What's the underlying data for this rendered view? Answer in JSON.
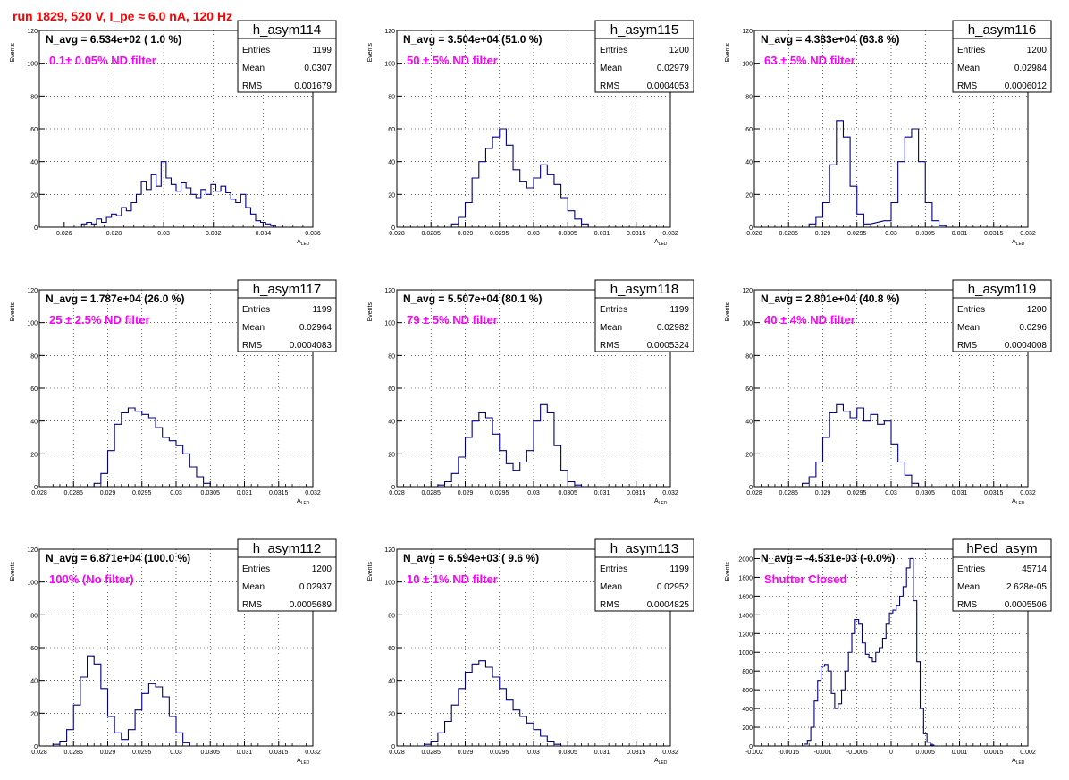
{
  "page_title": "run 1829,   520 V, I_pe ≈ 6.0 nA, 120 Hz",
  "colors": {
    "title": "#ff0000",
    "annotation": "#ff00ff",
    "histogram": "#000080",
    "grid": "#000000"
  },
  "stat_labels": {
    "entries": "Entries",
    "mean": "Mean",
    "rms": "RMS"
  },
  "axis_label_main": "A",
  "axis_label_sub": "LED",
  "axis_label_y": "Events",
  "chart_data": [
    {
      "type": "bar",
      "name": "h_asym114",
      "nline": "N_avg = 6.534e+02 ( 1.0 %)",
      "annotation": "0.1± 0.05% ND filter",
      "entries": "1199",
      "mean": "0.0307",
      "rms": "0.001679",
      "xlim": [
        0.025,
        0.036
      ],
      "ylim": [
        0,
        120
      ],
      "xticks": [
        "0.026",
        "0.028",
        "0.03",
        "0.032",
        "0.034",
        "0.036"
      ],
      "xtick_values": [
        0.026,
        0.028,
        0.03,
        0.032,
        0.034,
        0.036
      ],
      "yticks": [
        "0",
        "20",
        "40",
        "60",
        "80",
        "100",
        "120"
      ],
      "ytick_values": [
        0,
        20,
        40,
        60,
        80,
        100,
        120
      ],
      "bins": [
        [
          0.0268,
          2
        ],
        [
          0.027,
          3
        ],
        [
          0.0272,
          2
        ],
        [
          0.0274,
          5
        ],
        [
          0.0276,
          3
        ],
        [
          0.0278,
          6
        ],
        [
          0.028,
          8
        ],
        [
          0.0282,
          7
        ],
        [
          0.0284,
          12
        ],
        [
          0.0286,
          10
        ],
        [
          0.0288,
          15
        ],
        [
          0.029,
          20
        ],
        [
          0.0292,
          28
        ],
        [
          0.0294,
          23
        ],
        [
          0.0296,
          32
        ],
        [
          0.0298,
          25
        ],
        [
          0.03,
          40
        ],
        [
          0.0302,
          30
        ],
        [
          0.0304,
          26
        ],
        [
          0.0306,
          22
        ],
        [
          0.0308,
          27
        ],
        [
          0.031,
          24
        ],
        [
          0.0312,
          20
        ],
        [
          0.0314,
          18
        ],
        [
          0.0316,
          23
        ],
        [
          0.0318,
          20
        ],
        [
          0.032,
          26
        ],
        [
          0.0322,
          22
        ],
        [
          0.0324,
          25
        ],
        [
          0.0326,
          21
        ],
        [
          0.0328,
          17
        ],
        [
          0.033,
          15
        ],
        [
          0.0332,
          20
        ],
        [
          0.0334,
          12
        ],
        [
          0.0336,
          8
        ],
        [
          0.0338,
          4
        ],
        [
          0.034,
          3
        ],
        [
          0.0342,
          2
        ],
        [
          0.0344,
          1
        ]
      ]
    },
    {
      "type": "bar",
      "name": "h_asym115",
      "nline": "N_avg = 3.504e+04 (51.0 %)",
      "annotation": "50 ± 5% ND filter",
      "entries": "1200",
      "mean": "0.02979",
      "rms": "0.0004053",
      "xlim": [
        0.028,
        0.032
      ],
      "ylim": [
        0,
        120
      ],
      "xticks": [
        "0.028",
        "0.0285",
        "0.029",
        "0.0295",
        "0.03",
        "0.0305",
        "0.031",
        "0.0315",
        "0.032"
      ],
      "xtick_values": [
        0.028,
        0.0285,
        0.029,
        0.0295,
        0.03,
        0.0305,
        0.031,
        0.0315,
        0.032
      ],
      "yticks": [
        "0",
        "20",
        "40",
        "60",
        "80",
        "100",
        "120"
      ],
      "ytick_values": [
        0,
        20,
        40,
        60,
        80,
        100,
        120
      ],
      "bins": [
        [
          0.02885,
          2
        ],
        [
          0.02895,
          6
        ],
        [
          0.02905,
          15
        ],
        [
          0.02915,
          30
        ],
        [
          0.02925,
          40
        ],
        [
          0.02935,
          48
        ],
        [
          0.02945,
          55
        ],
        [
          0.02955,
          60
        ],
        [
          0.02965,
          50
        ],
        [
          0.02975,
          35
        ],
        [
          0.02985,
          28
        ],
        [
          0.02995,
          24
        ],
        [
          0.03005,
          30
        ],
        [
          0.03015,
          38
        ],
        [
          0.03025,
          32
        ],
        [
          0.03035,
          26
        ],
        [
          0.03045,
          18
        ],
        [
          0.03055,
          10
        ],
        [
          0.03065,
          5
        ],
        [
          0.03075,
          2
        ]
      ]
    },
    {
      "type": "bar",
      "name": "h_asym116",
      "nline": "N_avg = 4.383e+04 (63.8 %)",
      "annotation": "63 ± 5% ND filter",
      "entries": "1200",
      "mean": "0.02984",
      "rms": "0.0006012",
      "xlim": [
        0.028,
        0.032
      ],
      "ylim": [
        0,
        120
      ],
      "xticks": [
        "0.028",
        "0.0285",
        "0.029",
        "0.0295",
        "0.03",
        "0.0305",
        "0.031",
        "0.0315",
        "0.032"
      ],
      "xtick_values": [
        0.028,
        0.0285,
        0.029,
        0.0295,
        0.03,
        0.0305,
        0.031,
        0.0315,
        0.032
      ],
      "yticks": [
        "0",
        "20",
        "40",
        "60",
        "80",
        "100",
        "120"
      ],
      "ytick_values": [
        0,
        20,
        40,
        60,
        80,
        100,
        120
      ],
      "bins": [
        [
          0.02885,
          2
        ],
        [
          0.02895,
          6
        ],
        [
          0.02905,
          15
        ],
        [
          0.02915,
          38
        ],
        [
          0.02925,
          65
        ],
        [
          0.02935,
          55
        ],
        [
          0.02945,
          25
        ],
        [
          0.02955,
          8
        ],
        [
          0.02965,
          2
        ],
        [
          0.02995,
          4
        ],
        [
          0.03005,
          15
        ],
        [
          0.03015,
          40
        ],
        [
          0.03025,
          55
        ],
        [
          0.03035,
          60
        ],
        [
          0.03045,
          40
        ],
        [
          0.03055,
          15
        ],
        [
          0.03065,
          4
        ],
        [
          0.03075,
          1
        ]
      ]
    },
    {
      "type": "bar",
      "name": "h_asym117",
      "nline": "N_avg = 1.787e+04 (26.0 %)",
      "annotation": "25 ± 2.5% ND filter",
      "entries": "1199",
      "mean": "0.02964",
      "rms": "0.0004083",
      "xlim": [
        0.028,
        0.032
      ],
      "ylim": [
        0,
        120
      ],
      "xticks": [
        "0.028",
        "0.0285",
        "0.029",
        "0.0295",
        "0.03",
        "0.0305",
        "0.031",
        "0.0315",
        "0.032"
      ],
      "xtick_values": [
        0.028,
        0.0285,
        0.029,
        0.0295,
        0.03,
        0.0305,
        0.031,
        0.0315,
        0.032
      ],
      "yticks": [
        "0",
        "20",
        "40",
        "60",
        "80",
        "100",
        "120"
      ],
      "ytick_values": [
        0,
        20,
        40,
        60,
        80,
        100,
        120
      ],
      "bins": [
        [
          0.02885,
          2
        ],
        [
          0.02895,
          8
        ],
        [
          0.02905,
          22
        ],
        [
          0.02915,
          38
        ],
        [
          0.02925,
          45
        ],
        [
          0.02935,
          48
        ],
        [
          0.02945,
          46
        ],
        [
          0.02955,
          44
        ],
        [
          0.02965,
          42
        ],
        [
          0.02975,
          36
        ],
        [
          0.02985,
          30
        ],
        [
          0.02995,
          28
        ],
        [
          0.03005,
          25
        ],
        [
          0.03015,
          20
        ],
        [
          0.03025,
          12
        ],
        [
          0.03035,
          6
        ],
        [
          0.03045,
          2
        ]
      ]
    },
    {
      "type": "bar",
      "name": "h_asym118",
      "nline": "N_avg = 5.507e+04 (80.1 %)",
      "annotation": "79 ± 5% ND filter",
      "entries": "1199",
      "mean": "0.02982",
      "rms": "0.0005324",
      "xlim": [
        0.028,
        0.032
      ],
      "ylim": [
        0,
        120
      ],
      "xticks": [
        "0.028",
        "0.0285",
        "0.029",
        "0.0295",
        "0.03",
        "0.0305",
        "0.031",
        "0.0315",
        "0.032"
      ],
      "xtick_values": [
        0.028,
        0.0285,
        0.029,
        0.0295,
        0.03,
        0.0305,
        0.031,
        0.0315,
        0.032
      ],
      "yticks": [
        "0",
        "20",
        "40",
        "60",
        "80",
        "100",
        "120"
      ],
      "ytick_values": [
        0,
        20,
        40,
        60,
        80,
        100,
        120
      ],
      "bins": [
        [
          0.02865,
          1
        ],
        [
          0.02875,
          3
        ],
        [
          0.02885,
          8
        ],
        [
          0.02895,
          18
        ],
        [
          0.02905,
          30
        ],
        [
          0.02915,
          40
        ],
        [
          0.02925,
          45
        ],
        [
          0.02935,
          42
        ],
        [
          0.02945,
          32
        ],
        [
          0.02955,
          22
        ],
        [
          0.02965,
          14
        ],
        [
          0.02975,
          10
        ],
        [
          0.02985,
          15
        ],
        [
          0.02995,
          22
        ],
        [
          0.03005,
          40
        ],
        [
          0.03015,
          50
        ],
        [
          0.03025,
          45
        ],
        [
          0.03035,
          25
        ],
        [
          0.03045,
          10
        ],
        [
          0.03055,
          3
        ],
        [
          0.03065,
          1
        ]
      ]
    },
    {
      "type": "bar",
      "name": "h_asym119",
      "nline": "N_avg = 2.801e+04 (40.8 %)",
      "annotation": "40 ± 4% ND filter",
      "entries": "1200",
      "mean": "0.0296",
      "rms": "0.0004008",
      "xlim": [
        0.028,
        0.032
      ],
      "ylim": [
        0,
        120
      ],
      "xticks": [
        "0.028",
        "0.0285",
        "0.029",
        "0.0295",
        "0.03",
        "0.0305",
        "0.031",
        "0.0315",
        "0.032"
      ],
      "xtick_values": [
        0.028,
        0.0285,
        0.029,
        0.0295,
        0.03,
        0.0305,
        0.031,
        0.0315,
        0.032
      ],
      "yticks": [
        "0",
        "20",
        "40",
        "60",
        "80",
        "100",
        "120"
      ],
      "ytick_values": [
        0,
        20,
        40,
        60,
        80,
        100,
        120
      ],
      "bins": [
        [
          0.02875,
          2
        ],
        [
          0.02885,
          6
        ],
        [
          0.02895,
          15
        ],
        [
          0.02905,
          30
        ],
        [
          0.02915,
          45
        ],
        [
          0.02925,
          50
        ],
        [
          0.02935,
          46
        ],
        [
          0.02945,
          42
        ],
        [
          0.02955,
          48
        ],
        [
          0.02965,
          40
        ],
        [
          0.02975,
          44
        ],
        [
          0.02985,
          38
        ],
        [
          0.02995,
          40
        ],
        [
          0.03005,
          26
        ],
        [
          0.03015,
          15
        ],
        [
          0.03025,
          7
        ],
        [
          0.03035,
          2
        ]
      ]
    },
    {
      "type": "bar",
      "name": "h_asym112",
      "nline": "N_avg = 6.871e+04 (100.0 %)",
      "annotation": "100% (No filter)",
      "entries": "1200",
      "mean": "0.02937",
      "rms": "0.0005689",
      "xlim": [
        0.028,
        0.032
      ],
      "ylim": [
        0,
        120
      ],
      "xticks": [
        "0.028",
        "0.0285",
        "0.029",
        "0.0295",
        "0.03",
        "0.0305",
        "0.031",
        "0.0315",
        "0.032"
      ],
      "xtick_values": [
        0.028,
        0.0285,
        0.029,
        0.0295,
        0.03,
        0.0305,
        0.031,
        0.0315,
        0.032
      ],
      "yticks": [
        "0",
        "20",
        "40",
        "60",
        "80",
        "100",
        "120"
      ],
      "ytick_values": [
        0,
        20,
        40,
        60,
        80,
        100,
        120
      ],
      "bins": [
        [
          0.02825,
          1
        ],
        [
          0.02835,
          3
        ],
        [
          0.02845,
          10
        ],
        [
          0.02855,
          25
        ],
        [
          0.02865,
          42
        ],
        [
          0.02875,
          55
        ],
        [
          0.02885,
          50
        ],
        [
          0.02895,
          35
        ],
        [
          0.02905,
          18
        ],
        [
          0.02915,
          8
        ],
        [
          0.02925,
          4
        ],
        [
          0.02935,
          10
        ],
        [
          0.02945,
          22
        ],
        [
          0.02955,
          32
        ],
        [
          0.02965,
          38
        ],
        [
          0.02975,
          36
        ],
        [
          0.02985,
          30
        ],
        [
          0.02995,
          18
        ],
        [
          0.03005,
          8
        ],
        [
          0.03015,
          2
        ]
      ]
    },
    {
      "type": "bar",
      "name": "h_asym113",
      "nline": "N_avg = 6.594e+03 ( 9.6 %)",
      "annotation": "10 ± 1% ND filter",
      "entries": "1199",
      "mean": "0.02952",
      "rms": "0.0004825",
      "xlim": [
        0.028,
        0.032
      ],
      "ylim": [
        0,
        120
      ],
      "xticks": [
        "0.028",
        "0.0285",
        "0.029",
        "0.0295",
        "0.03",
        "0.0305",
        "0.031",
        "0.0315",
        "0.032"
      ],
      "xtick_values": [
        0.028,
        0.0285,
        0.029,
        0.0295,
        0.03,
        0.0305,
        0.031,
        0.0315,
        0.032
      ],
      "yticks": [
        "0",
        "20",
        "40",
        "60",
        "80",
        "100",
        "120"
      ],
      "ytick_values": [
        0,
        20,
        40,
        60,
        80,
        100,
        120
      ],
      "bins": [
        [
          0.02845,
          1
        ],
        [
          0.02855,
          3
        ],
        [
          0.02865,
          8
        ],
        [
          0.02875,
          15
        ],
        [
          0.02885,
          25
        ],
        [
          0.02895,
          35
        ],
        [
          0.02905,
          45
        ],
        [
          0.02915,
          50
        ],
        [
          0.02925,
          52
        ],
        [
          0.02935,
          48
        ],
        [
          0.02945,
          42
        ],
        [
          0.02955,
          35
        ],
        [
          0.02965,
          28
        ],
        [
          0.02975,
          22
        ],
        [
          0.02985,
          18
        ],
        [
          0.02995,
          14
        ],
        [
          0.03005,
          10
        ],
        [
          0.03015,
          6
        ],
        [
          0.03025,
          3
        ],
        [
          0.03035,
          1
        ]
      ]
    },
    {
      "type": "bar",
      "name": "hPed_asym",
      "nline": "N_avg = -4.531e-03 (-0.0%)",
      "annotation": "Shutter Closed",
      "entries": "45714",
      "mean": "2.628e-05",
      "rms": "0.0005506",
      "xlim": [
        -0.002,
        0.002
      ],
      "ylim": [
        0,
        2100
      ],
      "xticks": [
        "-0.002",
        "-0.0015",
        "-0.001",
        "-0.0005",
        "0",
        "0.0005",
        "0.001",
        "0.0015",
        "0.002"
      ],
      "xtick_values": [
        -0.002,
        -0.0015,
        -0.001,
        -0.0005,
        0,
        0.0005,
        0.001,
        0.0015,
        0.002
      ],
      "yticks": [
        "0",
        "200",
        "400",
        "600",
        "800",
        "1000",
        "1200",
        "1400",
        "1600",
        "1800",
        "2000"
      ],
      "ytick_values": [
        0,
        200,
        400,
        600,
        800,
        1000,
        1200,
        1400,
        1600,
        1800,
        2000
      ],
      "bins": [
        [
          -0.00125,
          20
        ],
        [
          -0.0012,
          60
        ],
        [
          -0.00115,
          200
        ],
        [
          -0.0011,
          480
        ],
        [
          -0.00105,
          700
        ],
        [
          -0.001,
          850
        ],
        [
          -0.00095,
          870
        ],
        [
          -0.0009,
          800
        ],
        [
          -0.00085,
          560
        ],
        [
          -0.0008,
          400
        ],
        [
          -0.00075,
          450
        ],
        [
          -0.0007,
          600
        ],
        [
          -0.00065,
          800
        ],
        [
          -0.0006,
          1000
        ],
        [
          -0.00055,
          1200
        ],
        [
          -0.0005,
          1350
        ],
        [
          -0.00045,
          1300
        ],
        [
          -0.0004,
          1100
        ],
        [
          -0.00035,
          980
        ],
        [
          -0.0003,
          940
        ],
        [
          -0.00025,
          900
        ],
        [
          -0.0002,
          1000
        ],
        [
          -0.00015,
          1050
        ],
        [
          -0.0001,
          1150
        ],
        [
          -5e-05,
          1300
        ],
        [
          0.0,
          1420
        ],
        [
          5e-05,
          1450
        ],
        [
          0.0001,
          1500
        ],
        [
          0.00015,
          1600
        ],
        [
          0.0002,
          1700
        ],
        [
          0.00025,
          1900
        ],
        [
          0.0003,
          2000
        ],
        [
          0.00035,
          1550
        ],
        [
          0.0004,
          900
        ],
        [
          0.00045,
          400
        ],
        [
          0.0005,
          130
        ],
        [
          0.00055,
          40
        ],
        [
          0.0006,
          10
        ]
      ]
    }
  ]
}
